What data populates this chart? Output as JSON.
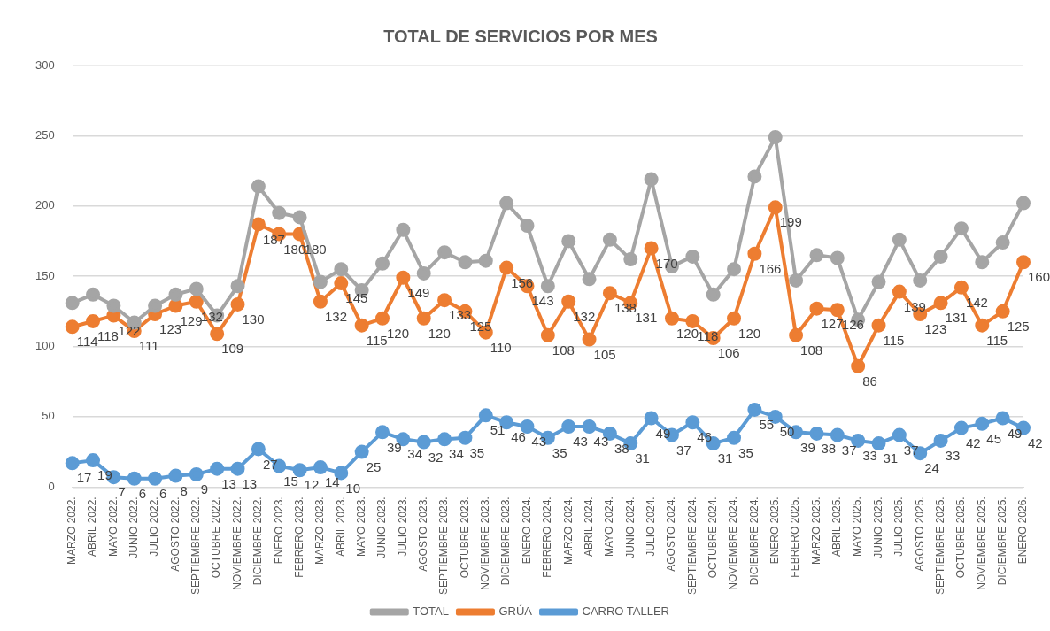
{
  "chart_data": {
    "type": "line",
    "title": "TOTAL DE SERVICIOS POR MES",
    "categories": [
      "MARZO 2022.",
      "ABRIL 2022.",
      "MAYO 2022.",
      "JUNIO 2022.",
      "JULIO 2022.",
      "AGOSTO 2022.",
      "SEPTIEMBRE 2022.",
      "OCTUBRE 2022.",
      "NOVIEMBRE 2022.",
      "DICIEMBRE 2022.",
      "ENERO 2023.",
      "FEBRERO 2023.",
      "MARZO 2023.",
      "ABRIL 2023.",
      "MAYO 2023.",
      "JUNIO 2023.",
      "JULIO 2023.",
      "AGOSTO 2023.",
      "SEPTIEMBRE 2023.",
      "OCTUBRE 2023.",
      "NOVIEMBRE 2023.",
      "DICIEMBRE 2023.",
      "ENERO 2024.",
      "FEBRERO 2024.",
      "MARZO 2024.",
      "ABRIL 2024.",
      "MAYO 2024.",
      "JUNIO 2024.",
      "JULIO 2024.",
      "AGOSTO 2024.",
      "SEPTIEMBRE 2024.",
      "OCTUBRE 2024.",
      "NOVIEMBRE 2024.",
      "DICIEMBRE 2024.",
      "ENERO 2025.",
      "FEBRERO 2025.",
      "MARZO 2025.",
      "ABRIL 2025.",
      "MAYO 2025.",
      "JUNIO 2025.",
      "JULIO 2025.",
      "AGOSTO 2025.",
      "SEPTIEMBRE 2025.",
      "OCTUBRE 2025.",
      "NOVIEMBRE 2025.",
      "DICIEMBRE 2025.",
      "ENERO 2026."
    ],
    "series": [
      {
        "name": "CARRO TALLER",
        "color": "#5b9bd5",
        "data_labels": true,
        "values": [
          17,
          19,
          7,
          6,
          6,
          8,
          9,
          13,
          13,
          27,
          15,
          12,
          14,
          10,
          25,
          39,
          34,
          32,
          34,
          35,
          51,
          46,
          43,
          35,
          43,
          43,
          38,
          31,
          49,
          37,
          46,
          31,
          35,
          55,
          50,
          39,
          38,
          37,
          33,
          31,
          37,
          24,
          33,
          42,
          45,
          49,
          42
        ]
      },
      {
        "name": "GRÚA",
        "color": "#ed7d31",
        "data_labels": true,
        "values": [
          114,
          118,
          122,
          111,
          123,
          129,
          132,
          109,
          130,
          187,
          180,
          180,
          132,
          145,
          115,
          120,
          149,
          120,
          133,
          125,
          110,
          156,
          143,
          108,
          132,
          105,
          138,
          131,
          170,
          120,
          118,
          106,
          120,
          166,
          199,
          108,
          127,
          126,
          86,
          115,
          139,
          123,
          131,
          142,
          115,
          125,
          160
        ]
      },
      {
        "name": "TOTAL",
        "color": "#a5a5a5",
        "values": [
          131,
          137,
          129,
          117,
          129,
          137,
          141,
          122,
          143,
          214,
          195,
          192,
          146,
          155,
          140,
          159,
          183,
          152,
          167,
          160,
          161,
          202,
          186,
          143,
          175,
          148,
          176,
          162,
          219,
          157,
          164,
          137,
          155,
          221,
          249,
          147,
          165,
          163,
          119,
          146,
          176,
          147,
          164,
          184,
          160,
          174,
          202
        ]
      }
    ],
    "ylim": [
      0,
      300
    ],
    "yticks": [
      0,
      50,
      100,
      150,
      200,
      250,
      300
    ],
    "grid": "y",
    "legend": "bottom",
    "marker": "circle",
    "line_style": "solid"
  }
}
